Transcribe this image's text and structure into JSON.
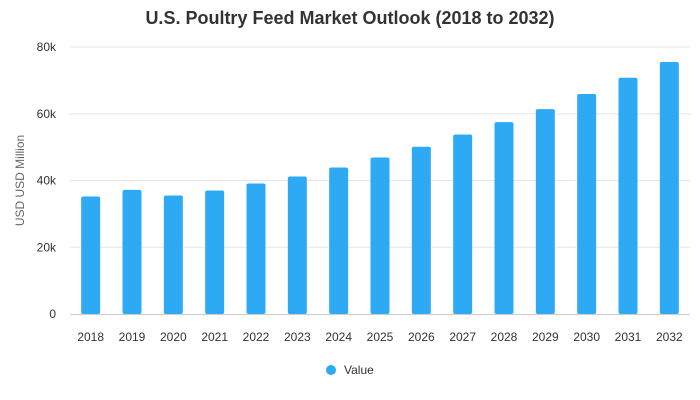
{
  "chart_data": {
    "type": "bar",
    "title": "U.S. Poultry Feed Market Outlook (2018 to 2032)",
    "xlabel": "",
    "ylabel": "USD USD Million",
    "categories": [
      "2018",
      "2019",
      "2020",
      "2021",
      "2022",
      "2023",
      "2024",
      "2025",
      "2026",
      "2027",
      "2028",
      "2029",
      "2030",
      "2031",
      "2032"
    ],
    "series": [
      {
        "name": "Value",
        "color": "#2eaaf5",
        "values": [
          35200,
          37200,
          35500,
          37000,
          39100,
          41200,
          43900,
          46900,
          50100,
          53800,
          57500,
          61400,
          65900,
          70800,
          75500
        ]
      }
    ],
    "ylim": [
      0,
      80000
    ],
    "yticks": [
      {
        "value": 0,
        "label": "0"
      },
      {
        "value": 20000,
        "label": "20k"
      },
      {
        "value": 40000,
        "label": "40k"
      },
      {
        "value": 60000,
        "label": "60k"
      },
      {
        "value": 80000,
        "label": "80k"
      }
    ],
    "grid": true,
    "legend_position": "bottom"
  }
}
